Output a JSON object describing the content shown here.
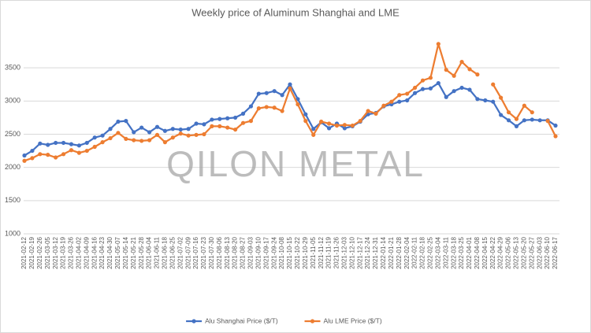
{
  "chart_data": {
    "type": "line",
    "title": "Weekly price of Aluminum Shanghai and LME",
    "watermark": "QILON METAL",
    "categories": [
      "2021-02-12",
      "2021-02-19",
      "2021-02-26",
      "2021-03-05",
      "2021-03-12",
      "2021-03-19",
      "2021-03-26",
      "2021-04-02",
      "2021-04-09",
      "2021-04-16",
      "2021-04-23",
      "2021-04-30",
      "2021-05-07",
      "2021-05-14",
      "2021-05-21",
      "2021-05-28",
      "2021-06-04",
      "2021-06-11",
      "2021-06-18",
      "2021-06-25",
      "2021-07-02",
      "2021-07-09",
      "2021-07-16",
      "2021-07-23",
      "2021-07-30",
      "2021-08-06",
      "2021-08-13",
      "2021-08-20",
      "2021-08-27",
      "2021-09-03",
      "2021-09-10",
      "2021-09-17",
      "2021-09-24",
      "2021-10-08",
      "2021-10-15",
      "2021-10-22",
      "2021-10-29",
      "2021-11-05",
      "2021-11-12",
      "2021-11-19",
      "2021-11-26",
      "2021-12-03",
      "2021-12-10",
      "2021-12-17",
      "2021-12-24",
      "2021-12-31",
      "2022-01-14",
      "2022-01-21",
      "2022-01-28",
      "2022-02-04",
      "2022-02-11",
      "2022-02-18",
      "2022-02-25",
      "2022-03-04",
      "2022-03-11",
      "2022-03-18",
      "2022-03-25",
      "2022-04-01",
      "2022-04-08",
      "2022-04-15",
      "2022-04-22",
      "2022-04-29",
      "2022-05-06",
      "2022-05-13",
      "2022-05-20",
      "2022-05-27",
      "2022-06-03",
      "2022-06-10",
      "2022-06-17"
    ],
    "series": [
      {
        "name": "Alu Shanghai Price ($/T)",
        "color": "#4472c4",
        "values": [
          2180,
          2250,
          2360,
          2340,
          2370,
          2370,
          2350,
          2330,
          2370,
          2450,
          2480,
          2580,
          2690,
          2700,
          2530,
          2600,
          2530,
          2610,
          2550,
          2580,
          2570,
          2580,
          2660,
          2650,
          2720,
          2730,
          2740,
          2750,
          2810,
          2920,
          3110,
          3120,
          3150,
          3090,
          3250,
          3030,
          2800,
          2580,
          2680,
          2590,
          2660,
          2590,
          2620,
          2690,
          2800,
          2820,
          2920,
          2950,
          2990,
          3010,
          3120,
          3180,
          3190,
          3270,
          3060,
          3150,
          3200,
          3170,
          3030,
          3010,
          2990,
          2790,
          2710,
          2620,
          2710,
          2720,
          2710,
          2710,
          2630
        ]
      },
      {
        "name": "Alu LME Price ($/T)",
        "color": "#ed7d31",
        "values": [
          2100,
          2140,
          2200,
          2190,
          2150,
          2200,
          2260,
          2220,
          2250,
          2310,
          2380,
          2440,
          2520,
          2430,
          2410,
          2400,
          2410,
          2490,
          2380,
          2450,
          2510,
          2480,
          2490,
          2500,
          2620,
          2620,
          2600,
          2570,
          2670,
          2700,
          2890,
          2910,
          2900,
          2850,
          3190,
          2950,
          2700,
          2490,
          2690,
          2660,
          2630,
          2640,
          2630,
          2700,
          2850,
          2810,
          2930,
          2990,
          3090,
          3110,
          3200,
          3310,
          3350,
          3860,
          3470,
          3380,
          3590,
          3480,
          3400,
          null,
          3250,
          3050,
          2830,
          2730,
          2930,
          2830,
          null,
          2700,
          2470
        ]
      }
    ],
    "ylim": [
      1000,
      4000
    ],
    "yticks": [
      1000,
      1500,
      2000,
      2500,
      3000,
      3500
    ],
    "grid": true,
    "legend": "bottom"
  }
}
